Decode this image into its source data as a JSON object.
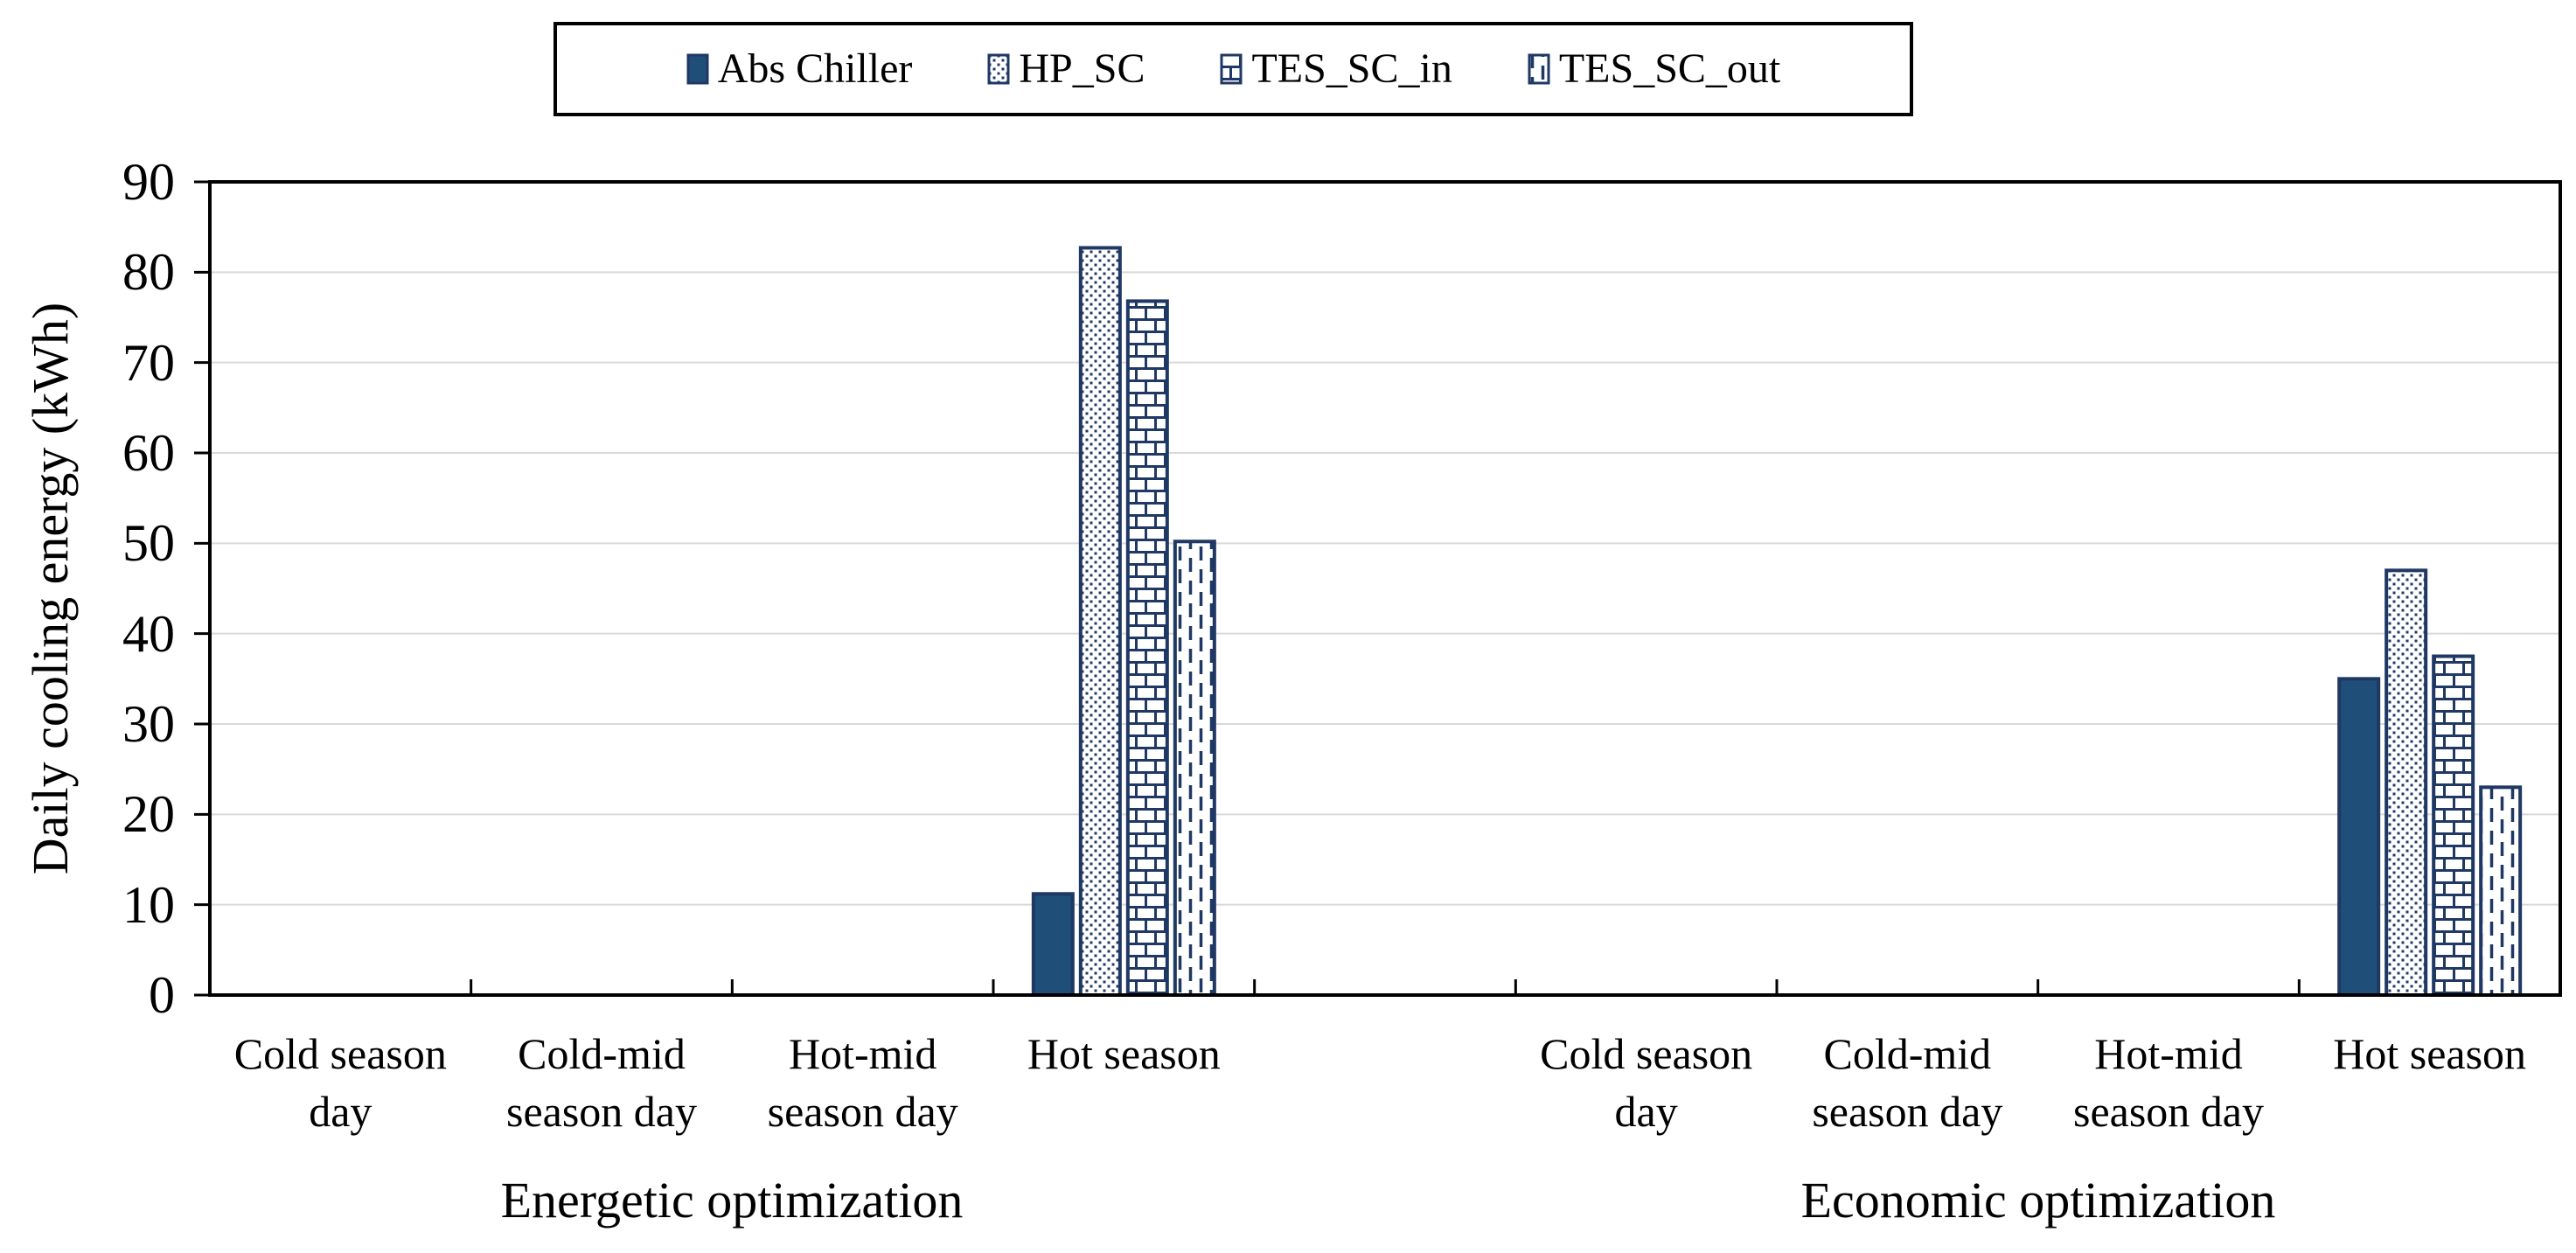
{
  "page": {
    "background": "#FFFFFF"
  },
  "chart_data": {
    "type": "bar",
    "title": "",
    "ylabel": "Daily cooling energy (kWh)",
    "xlabel": "",
    "ylim": [
      0,
      90
    ],
    "ytick_step": 10,
    "yticks": [
      0,
      10,
      20,
      30,
      40,
      50,
      60,
      70,
      80,
      90
    ],
    "grid": true,
    "legend_position": "top",
    "legend": [
      "Abs Chiller",
      "HP_SC",
      "TES_SC_in",
      "TES_SC_out"
    ],
    "groups": [
      {
        "label": "Energetic optimization",
        "categories": [
          "Cold season day",
          "Cold-mid season day",
          "Hot-mid season day",
          "Hot season"
        ],
        "category_lines": [
          [
            "Cold season",
            "day"
          ],
          [
            "Cold-mid",
            "season day"
          ],
          [
            "Hot-mid",
            "season day"
          ],
          [
            "Hot season"
          ]
        ]
      },
      {
        "label": "Economic optimization",
        "categories": [
          "Cold season day",
          "Cold-mid season day",
          "Hot-mid season day",
          "Hot season"
        ],
        "category_lines": [
          [
            "Cold season",
            "day"
          ],
          [
            "Cold-mid",
            "season day"
          ],
          [
            "Hot-mid",
            "season day"
          ],
          [
            "Hot season"
          ]
        ]
      }
    ],
    "series": [
      {
        "name": "Abs Chiller",
        "pattern": "solid",
        "values": [
          [
            0,
            0,
            0,
            11.2
          ],
          [
            0,
            0,
            0,
            35.0
          ]
        ]
      },
      {
        "name": "HP_SC",
        "pattern": "dots",
        "values": [
          [
            0,
            0,
            0,
            82.7
          ],
          [
            0,
            0,
            0,
            47.0
          ]
        ]
      },
      {
        "name": "TES_SC_in",
        "pattern": "bricks",
        "values": [
          [
            0,
            0,
            0,
            76.8
          ],
          [
            0,
            0,
            0,
            37.5
          ]
        ]
      },
      {
        "name": "TES_SC_out",
        "pattern": "vdash",
        "values": [
          [
            0,
            0,
            0,
            50.2
          ],
          [
            0,
            0,
            0,
            23.0
          ]
        ]
      }
    ],
    "colors": {
      "solid_fill": "#1F4E79",
      "pattern_ink": "#1F3864",
      "bar_border": "#1F3864",
      "grid": "#D9D9D9",
      "axis": "#000000",
      "text": "#000000",
      "background": "#FFFFFF"
    }
  }
}
